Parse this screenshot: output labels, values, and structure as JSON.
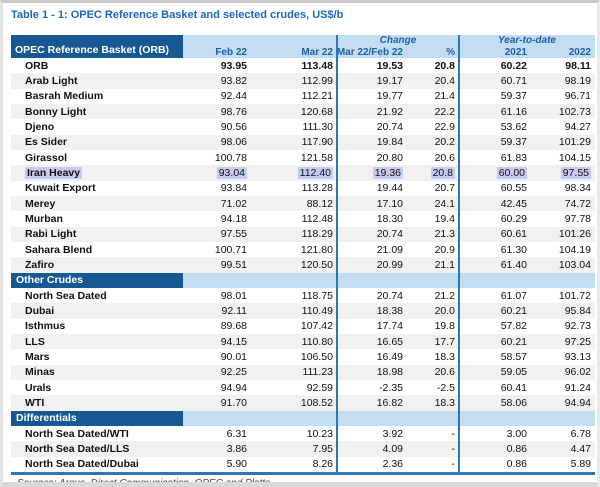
{
  "title": "Table 1 - 1: OPEC Reference Basket and selected crudes, US$/b",
  "header": {
    "name_column": "OPEC Reference Basket (ORB)",
    "groups": {
      "change": "Change",
      "ytd": "Year-to-date"
    },
    "columns": [
      "Feb 22",
      "Mar 22",
      "Mar 22/Feb 22",
      "%",
      "2021",
      "2022"
    ]
  },
  "sections": [
    {
      "label": null,
      "rows": [
        {
          "name": "ORB",
          "values": [
            "93.95",
            "113.48",
            "19.53",
            "20.8",
            "60.22",
            "98.11"
          ],
          "bold": true
        },
        {
          "name": "Arab Light",
          "values": [
            "93.82",
            "112.99",
            "19.17",
            "20.4",
            "60.71",
            "98.19"
          ]
        },
        {
          "name": "Basrah Medium",
          "values": [
            "92.44",
            "112.21",
            "19.77",
            "21.4",
            "59.37",
            "96.71"
          ]
        },
        {
          "name": "Bonny Light",
          "values": [
            "98.76",
            "120.68",
            "21.92",
            "22.2",
            "61.16",
            "102.73"
          ]
        },
        {
          "name": "Djeno",
          "values": [
            "90.56",
            "111.30",
            "20.74",
            "22.9",
            "53.62",
            "94.27"
          ]
        },
        {
          "name": "Es Sider",
          "values": [
            "98.06",
            "117.90",
            "19.84",
            "20.2",
            "59.37",
            "101.29"
          ]
        },
        {
          "name": "Girassol",
          "values": [
            "100.78",
            "121.58",
            "20.80",
            "20.6",
            "61.83",
            "104.15"
          ]
        },
        {
          "name": "Iran Heavy",
          "values": [
            "93.04",
            "112.40",
            "19.36",
            "20.8",
            "60.00",
            "97.55"
          ],
          "highlight": true
        },
        {
          "name": "Kuwait Export",
          "values": [
            "93.84",
            "113.28",
            "19.44",
            "20.7",
            "60.55",
            "98.34"
          ]
        },
        {
          "name": "Merey",
          "values": [
            "71.02",
            "88.12",
            "17.10",
            "24.1",
            "42.45",
            "74.72"
          ]
        },
        {
          "name": "Murban",
          "values": [
            "94.18",
            "112.48",
            "18.30",
            "19.4",
            "60.29",
            "97.78"
          ]
        },
        {
          "name": "Rabi Light",
          "values": [
            "97.55",
            "118.29",
            "20.74",
            "21.3",
            "60.61",
            "101.26"
          ]
        },
        {
          "name": "Sahara Blend",
          "values": [
            "100.71",
            "121.80",
            "21.09",
            "20.9",
            "61.30",
            "104.19"
          ]
        },
        {
          "name": "Zafiro",
          "values": [
            "99.51",
            "120.50",
            "20.99",
            "21.1",
            "61.40",
            "103.04"
          ]
        }
      ]
    },
    {
      "label": "Other Crudes",
      "rows": [
        {
          "name": "North Sea Dated",
          "values": [
            "98.01",
            "118.75",
            "20.74",
            "21.2",
            "61.07",
            "101.72"
          ]
        },
        {
          "name": "Dubai",
          "values": [
            "92.11",
            "110.49",
            "18.38",
            "20.0",
            "60.21",
            "95.84"
          ]
        },
        {
          "name": "Isthmus",
          "values": [
            "89.68",
            "107.42",
            "17.74",
            "19.8",
            "57.82",
            "92.73"
          ]
        },
        {
          "name": "LLS",
          "values": [
            "94.15",
            "110.80",
            "16.65",
            "17.7",
            "60.21",
            "97.25"
          ]
        },
        {
          "name": "Mars",
          "values": [
            "90.01",
            "106.50",
            "16.49",
            "18.3",
            "58.57",
            "93.13"
          ]
        },
        {
          "name": "Minas",
          "values": [
            "92.25",
            "111.23",
            "18.98",
            "20.6",
            "59.05",
            "96.02"
          ]
        },
        {
          "name": "Urals",
          "values": [
            "94.94",
            "92.59",
            "-2.35",
            "-2.5",
            "60.41",
            "91.24"
          ]
        },
        {
          "name": "WTI",
          "values": [
            "91.70",
            "108.52",
            "16.82",
            "18.3",
            "58.06",
            "94.94"
          ]
        }
      ]
    },
    {
      "label": "Differentials",
      "rows": [
        {
          "name": "North Sea Dated/WTI",
          "values": [
            "6.31",
            "10.23",
            "3.92",
            "-",
            "3.00",
            "6.78"
          ]
        },
        {
          "name": "North Sea Dated/LLS",
          "values": [
            "3.86",
            "7.95",
            "4.09",
            "-",
            "0.86",
            "4.47"
          ]
        },
        {
          "name": "North Sea Dated/Dubai",
          "values": [
            "5.90",
            "8.26",
            "2.36",
            "-",
            "0.86",
            "5.89"
          ]
        }
      ]
    }
  ],
  "footer": {
    "sources": "Sources:  Argus, Direct Communication, OPEC and Platts."
  },
  "colors": {
    "dark_blue": "#175893",
    "light_blue": "#c3def2",
    "header_text_blue": "#1e5fa8",
    "title_blue": "#1b67c0",
    "rule_blue": "#2e75b6",
    "highlight_lavender": "#c7caf1",
    "zebra_gray": "#f1f1f1"
  }
}
